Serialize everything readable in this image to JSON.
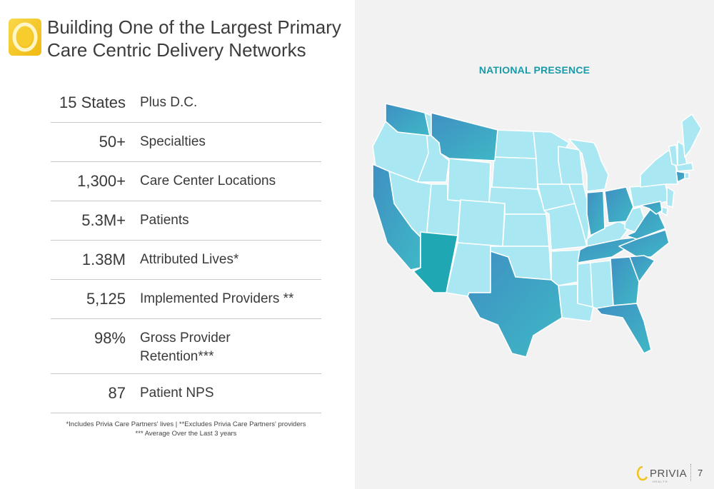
{
  "slide": {
    "title_line1": "Building One of the Largest Primary",
    "title_line2": "Care Centric Delivery Networks",
    "page_number": "7"
  },
  "stats": [
    {
      "value": "15 States",
      "label": "Plus D.C."
    },
    {
      "value": "50+",
      "label": "Specialties"
    },
    {
      "value": "1,300+",
      "label": "Care Center Locations"
    },
    {
      "value": "5.3M+",
      "label": "Patients"
    },
    {
      "value": "1.38M",
      "label": "Attributed Lives*"
    },
    {
      "value": "5,125",
      "label": "Implemented Providers **"
    },
    {
      "value": "98%",
      "label_line1": "Gross Provider",
      "label_line2": "Retention***"
    },
    {
      "value": "87",
      "label": "Patient NPS"
    }
  ],
  "footnotes": {
    "line1": "*Includes Privia Care Partners' lives  |  **Excludes Privia Care Partners' providers",
    "line2": "*** Average Over the Last 3 years"
  },
  "map": {
    "title": "NATIONAL PRESENCE",
    "colors": {
      "base_state": "#a9e7f2",
      "presence_state": "#3ea5c4",
      "border": "#ffffff",
      "title": "#1a9aa8"
    }
  },
  "brand": {
    "name": "PRIVIA",
    "sub": "HEALTH",
    "accent": "#f2c318"
  }
}
